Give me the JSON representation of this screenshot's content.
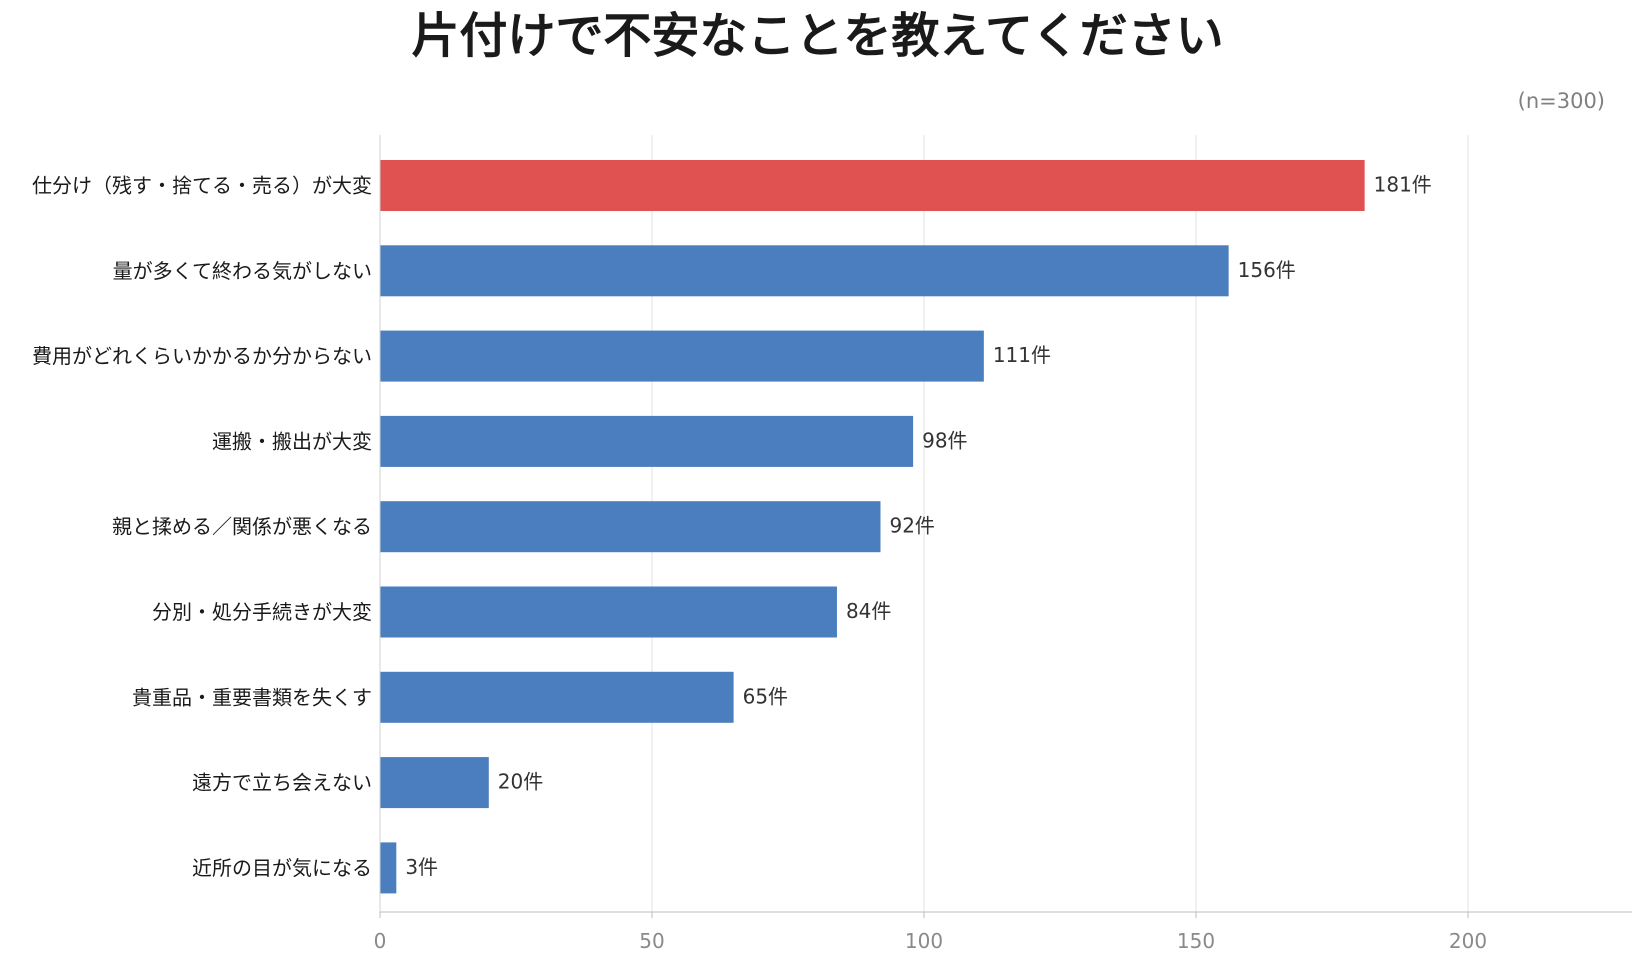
{
  "chart_data": {
    "type": "bar",
    "orientation": "horizontal",
    "title": "片付けで不安なことを教えてください",
    "subtitle": "(n=300)",
    "categories": [
      "仕分け（残す・捨てる・売る）が大変",
      "量が多くて終わる気がしない",
      "費用がどれくらいかかるか分からない",
      "運搬・搬出が大変",
      "親と揉める／関係が悪くなる",
      "分別・処分手続きが大変",
      "貴重品・重要書類を失くす",
      "遠方で立ち会えない",
      "近所の目が気になる"
    ],
    "values": [
      181,
      156,
      111,
      98,
      92,
      84,
      65,
      20,
      3
    ],
    "value_labels": [
      "181件",
      "156件",
      "111件",
      "98件",
      "92件",
      "84件",
      "65件",
      "20件",
      "3件"
    ],
    "xticks": [
      "0",
      "50",
      "100",
      "150",
      "200"
    ],
    "xlim": [
      0,
      230
    ],
    "grid": true,
    "highlight_color": "#e05252",
    "bar_color": "#4a7ebf",
    "highlight_index": 0
  }
}
